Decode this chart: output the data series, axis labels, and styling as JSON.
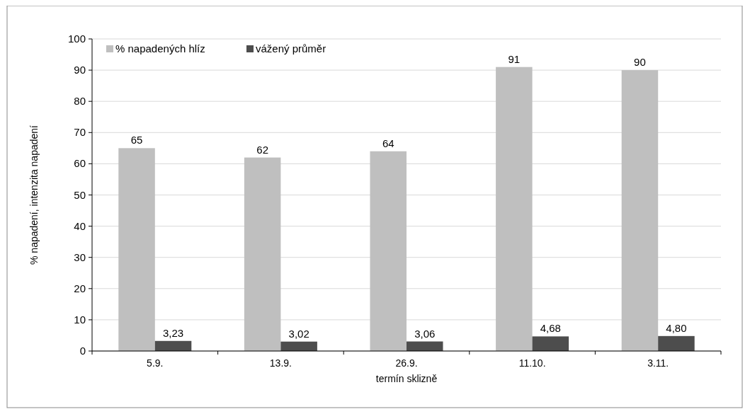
{
  "chart_data": {
    "type": "bar",
    "categories": [
      "5.9.",
      "13.9.",
      "26.9.",
      "11.10.",
      "3.11."
    ],
    "series": [
      {
        "name": "% napadených hlíz",
        "color": "#bfbfbf",
        "values": [
          65,
          62,
          64,
          91,
          90
        ],
        "value_labels": [
          "65",
          "62",
          "64",
          "91",
          "90"
        ]
      },
      {
        "name": "vážený průměr",
        "color": "#4d4d4d",
        "values": [
          3.23,
          3.02,
          3.06,
          4.68,
          4.8
        ],
        "value_labels": [
          "3,23",
          "3,02",
          "3,06",
          "4,68",
          "4,80"
        ]
      }
    ],
    "xlabel": "termín sklizně",
    "ylabel": "% napadení, intenzita napadení",
    "ylim": [
      0,
      100
    ],
    "yticks": [
      0,
      10,
      20,
      30,
      40,
      50,
      60,
      70,
      80,
      90,
      100
    ],
    "grid": "y",
    "legend": "top left"
  }
}
